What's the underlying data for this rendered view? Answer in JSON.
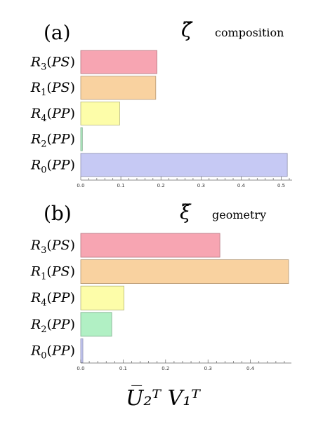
{
  "chart_data": [
    {
      "type": "bar",
      "orientation": "horizontal",
      "panel_label": "(a)",
      "symbol": "ζ̃",
      "title": "composition",
      "categories": [
        "R3(PS)",
        "R1(PS)",
        "R4(PP)",
        "R2(PP)",
        "R0(PP)"
      ],
      "values": [
        0.19,
        0.187,
        0.097,
        0.004,
        0.515
      ],
      "colors": [
        "#f7a5b2",
        "#f9d2a0",
        "#fdfda9",
        "#b1f0c4",
        "#c6c9f4"
      ],
      "xticks": [
        "0.0",
        "0.1",
        "0.2",
        "0.3",
        "0.4",
        "0.5"
      ],
      "xlim": [
        0,
        0.52
      ]
    },
    {
      "type": "bar",
      "orientation": "horizontal",
      "panel_label": "(b)",
      "symbol": "ξ̃",
      "title": "geometry",
      "categories": [
        "R3(PS)",
        "R1(PS)",
        "R4(PP)",
        "R2(PP)",
        "R0(PP)"
      ],
      "values": [
        0.328,
        0.49,
        0.102,
        0.073,
        0.005
      ],
      "colors": [
        "#f7a5b2",
        "#f9d2a0",
        "#fdfda9",
        "#b1f0c4",
        "#c6c9f4"
      ],
      "xticks": [
        "0.0",
        "0.1",
        "0.2",
        "0.3",
        "0.4"
      ],
      "xlim": [
        0,
        0.49
      ]
    }
  ],
  "xlabel": "U̅₂ᵀ V₁ᵀ"
}
